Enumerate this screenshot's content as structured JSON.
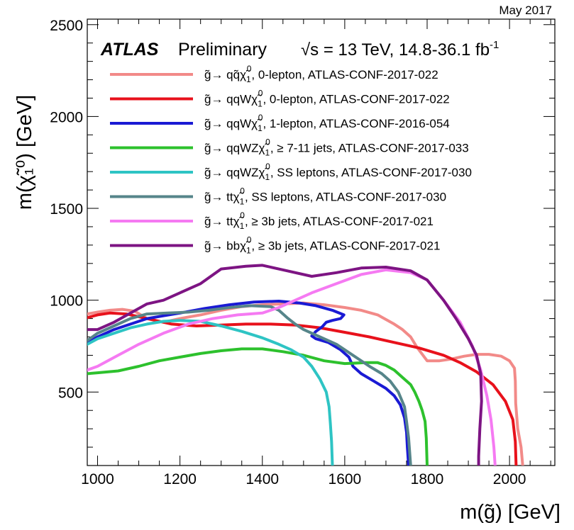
{
  "chart_data": {
    "type": "line",
    "title": "May 2017",
    "experiment": "ATLAS",
    "status": "Preliminary",
    "energy_label": "√s = 13 TeV, 14.8-36.1 fb",
    "energy_sup": "-1",
    "xlabel": "m(g̃) [GeV]",
    "ylabel": "m(χ̃₁⁰) [GeV]",
    "xlim": [
      975,
      2110
    ],
    "ylim": [
      100,
      2530
    ],
    "xticks": [
      1000,
      1200,
      1400,
      1600,
      1800,
      2000
    ],
    "yticks": [
      500,
      1000,
      1500,
      2000,
      2500
    ],
    "legend_position": "top",
    "series": [
      {
        "name": "g̃→ qqχ̃₁⁰, 0-lepton, ATLAS-CONF-2017-022",
        "legend": {
          "g": "g̃",
          "arrow": "→ qq̃χ̃",
          "rest": ", 0-lepton, ATLAS-CONF-2017-022"
        },
        "color": "#f28a88",
        "points": [
          [
            975,
            925
          ],
          [
            1000,
            935
          ],
          [
            1030,
            945
          ],
          [
            1060,
            950
          ],
          [
            1090,
            940
          ],
          [
            1120,
            900
          ],
          [
            1160,
            880
          ],
          [
            1200,
            900
          ],
          [
            1250,
            920
          ],
          [
            1300,
            945
          ],
          [
            1350,
            965
          ],
          [
            1400,
            975
          ],
          [
            1450,
            980
          ],
          [
            1500,
            985
          ],
          [
            1550,
            975
          ],
          [
            1600,
            960
          ],
          [
            1640,
            945
          ],
          [
            1680,
            920
          ],
          [
            1700,
            895
          ],
          [
            1720,
            870
          ],
          [
            1740,
            840
          ],
          [
            1760,
            800
          ],
          [
            1775,
            745
          ],
          [
            1790,
            700
          ],
          [
            1800,
            670
          ],
          [
            1830,
            670
          ],
          [
            1860,
            680
          ],
          [
            1890,
            695
          ],
          [
            1920,
            705
          ],
          [
            1950,
            705
          ],
          [
            1980,
            695
          ],
          [
            2000,
            670
          ],
          [
            2012,
            630
          ],
          [
            2014,
            560
          ],
          [
            2015,
            440
          ],
          [
            2020,
            300
          ],
          [
            2028,
            200
          ],
          [
            2032,
            100
          ]
        ]
      },
      {
        "name": "g̃→ qqWχ̃₁⁰, 0-lepton, ATLAS-CONF-2017-022",
        "color": "#e8111b",
        "points": [
          [
            975,
            905
          ],
          [
            1000,
            920
          ],
          [
            1030,
            930
          ],
          [
            1070,
            925
          ],
          [
            1100,
            910
          ],
          [
            1140,
            890
          ],
          [
            1180,
            870
          ],
          [
            1240,
            860
          ],
          [
            1300,
            865
          ],
          [
            1360,
            870
          ],
          [
            1420,
            870
          ],
          [
            1480,
            865
          ],
          [
            1540,
            850
          ],
          [
            1600,
            825
          ],
          [
            1660,
            800
          ],
          [
            1720,
            770
          ],
          [
            1780,
            740
          ],
          [
            1840,
            700
          ],
          [
            1880,
            660
          ],
          [
            1920,
            610
          ],
          [
            1960,
            540
          ],
          [
            1990,
            450
          ],
          [
            2008,
            350
          ],
          [
            2014,
            230
          ],
          [
            2016,
            100
          ]
        ]
      },
      {
        "name": "g̃→ qqWχ̃₁⁰, 1-lepton, ATLAS-CONF-2016-054",
        "color": "#1a1ad4",
        "points": [
          [
            975,
            770
          ],
          [
            1000,
            800
          ],
          [
            1040,
            840
          ],
          [
            1080,
            870
          ],
          [
            1120,
            900
          ],
          [
            1160,
            915
          ],
          [
            1200,
            930
          ],
          [
            1260,
            955
          ],
          [
            1320,
            975
          ],
          [
            1380,
            990
          ],
          [
            1440,
            995
          ],
          [
            1490,
            985
          ],
          [
            1530,
            970
          ],
          [
            1570,
            945
          ],
          [
            1598,
            920
          ],
          [
            1590,
            900
          ],
          [
            1570,
            890
          ],
          [
            1555,
            880
          ],
          [
            1545,
            855
          ],
          [
            1530,
            830
          ],
          [
            1520,
            805
          ],
          [
            1530,
            790
          ],
          [
            1560,
            770
          ],
          [
            1590,
            730
          ],
          [
            1610,
            690
          ],
          [
            1620,
            640
          ],
          [
            1640,
            600
          ],
          [
            1670,
            560
          ],
          [
            1700,
            520
          ],
          [
            1720,
            480
          ],
          [
            1735,
            430
          ],
          [
            1745,
            360
          ],
          [
            1750,
            280
          ],
          [
            1752,
            200
          ],
          [
            1755,
            100
          ]
        ]
      },
      {
        "name": "g̃→ qqWZχ̃₁⁰, ≥ 7-11 jets, ATLAS-CONF-2017-033",
        "color": "#2dc12d",
        "points": [
          [
            975,
            600
          ],
          [
            1000,
            605
          ],
          [
            1050,
            615
          ],
          [
            1100,
            640
          ],
          [
            1150,
            670
          ],
          [
            1200,
            690
          ],
          [
            1250,
            710
          ],
          [
            1300,
            725
          ],
          [
            1350,
            735
          ],
          [
            1400,
            735
          ],
          [
            1450,
            720
          ],
          [
            1500,
            700
          ],
          [
            1550,
            670
          ],
          [
            1600,
            655
          ],
          [
            1650,
            660
          ],
          [
            1680,
            660
          ],
          [
            1700,
            645
          ],
          [
            1720,
            620
          ],
          [
            1740,
            580
          ],
          [
            1760,
            540
          ],
          [
            1770,
            500
          ],
          [
            1780,
            450
          ],
          [
            1788,
            400
          ],
          [
            1795,
            340
          ],
          [
            1798,
            250
          ],
          [
            1800,
            100
          ]
        ]
      },
      {
        "name": "g̃→ qqWZχ̃₁⁰, SS leptons, ATLAS-CONF-2017-030",
        "color": "#2ec4c4",
        "points": [
          [
            975,
            760
          ],
          [
            1000,
            790
          ],
          [
            1040,
            820
          ],
          [
            1080,
            850
          ],
          [
            1120,
            870
          ],
          [
            1160,
            885
          ],
          [
            1200,
            890
          ],
          [
            1250,
            885
          ],
          [
            1300,
            860
          ],
          [
            1350,
            830
          ],
          [
            1400,
            795
          ],
          [
            1440,
            760
          ],
          [
            1470,
            730
          ],
          [
            1500,
            690
          ],
          [
            1520,
            640
          ],
          [
            1540,
            570
          ],
          [
            1555,
            500
          ],
          [
            1562,
            420
          ],
          [
            1565,
            330
          ],
          [
            1568,
            230
          ],
          [
            1570,
            100
          ]
        ]
      },
      {
        "name": "g̃→ ttχ̃₁⁰, SS leptons, ATLAS-CONF-2017-030",
        "color": "#56858a",
        "points": [
          [
            975,
            780
          ],
          [
            1000,
            820
          ],
          [
            1040,
            860
          ],
          [
            1080,
            900
          ],
          [
            1120,
            925
          ],
          [
            1170,
            930
          ],
          [
            1220,
            935
          ],
          [
            1270,
            945
          ],
          [
            1320,
            960
          ],
          [
            1370,
            970
          ],
          [
            1420,
            965
          ],
          [
            1440,
            945
          ],
          [
            1460,
            905
          ],
          [
            1480,
            870
          ],
          [
            1500,
            840
          ],
          [
            1540,
            800
          ],
          [
            1580,
            760
          ],
          [
            1620,
            700
          ],
          [
            1660,
            640
          ],
          [
            1690,
            600
          ],
          [
            1710,
            560
          ],
          [
            1730,
            500
          ],
          [
            1745,
            420
          ],
          [
            1750,
            340
          ],
          [
            1755,
            250
          ],
          [
            1760,
            100
          ]
        ]
      },
      {
        "name": "g̃→ ttχ̃₁⁰, ≥ 3b jets, ATLAS-CONF-2017-021",
        "color": "#f57af2",
        "points": [
          [
            975,
            620
          ],
          [
            1000,
            640
          ],
          [
            1050,
            700
          ],
          [
            1100,
            760
          ],
          [
            1160,
            820
          ],
          [
            1220,
            870
          ],
          [
            1280,
            900
          ],
          [
            1340,
            920
          ],
          [
            1400,
            930
          ],
          [
            1440,
            960
          ],
          [
            1480,
            1000
          ],
          [
            1520,
            1040
          ],
          [
            1580,
            1090
          ],
          [
            1640,
            1140
          ],
          [
            1700,
            1165
          ],
          [
            1760,
            1150
          ],
          [
            1800,
            1110
          ],
          [
            1840,
            1000
          ],
          [
            1880,
            880
          ],
          [
            1910,
            750
          ],
          [
            1930,
            620
          ],
          [
            1945,
            480
          ],
          [
            1955,
            350
          ],
          [
            1962,
            200
          ],
          [
            1965,
            100
          ]
        ]
      },
      {
        "name": "g̃→ bbχ̃₁⁰, ≥ 3b jets, ATLAS-CONF-2017-021",
        "color": "#7d1483",
        "points": [
          [
            975,
            840
          ],
          [
            1000,
            840
          ],
          [
            1040,
            880
          ],
          [
            1080,
            930
          ],
          [
            1120,
            980
          ],
          [
            1160,
            1000
          ],
          [
            1200,
            1040
          ],
          [
            1250,
            1090
          ],
          [
            1300,
            1170
          ],
          [
            1360,
            1185
          ],
          [
            1400,
            1190
          ],
          [
            1460,
            1160
          ],
          [
            1520,
            1130
          ],
          [
            1580,
            1150
          ],
          [
            1640,
            1175
          ],
          [
            1700,
            1180
          ],
          [
            1760,
            1160
          ],
          [
            1800,
            1110
          ],
          [
            1840,
            1000
          ],
          [
            1870,
            900
          ],
          [
            1900,
            790
          ],
          [
            1920,
            700
          ],
          [
            1930,
            600
          ],
          [
            1932,
            450
          ],
          [
            1928,
            300
          ],
          [
            1925,
            150
          ],
          [
            1925,
            100
          ]
        ]
      }
    ],
    "legend_labels": [
      {
        "pre": "g̃→ qq̃χ̃",
        "post": ", 0-lepton, ATLAS-CONF-2017-022"
      },
      {
        "pre": "g̃→ qqWχ̃",
        "post": ", 0-lepton, ATLAS-CONF-2017-022"
      },
      {
        "pre": "g̃→ qqWχ̃",
        "post": ", 1-lepton, ATLAS-CONF-2016-054"
      },
      {
        "pre": "g̃→ qqWZχ̃",
        "post": ", ≥ 7-11 jets, ATLAS-CONF-2017-033"
      },
      {
        "pre": "g̃→ qqWZχ̃",
        "post": ", SS leptons, ATLAS-CONF-2017-030"
      },
      {
        "pre": "g̃→ ttχ̃",
        "post": ", SS leptons, ATLAS-CONF-2017-030"
      },
      {
        "pre": "g̃→ ttχ̃",
        "post": ", ≥ 3b jets, ATLAS-CONF-2017-021"
      },
      {
        "pre": "g̃→ bbχ̃",
        "post": ", ≥ 3b jets, ATLAS-CONF-2017-021"
      }
    ],
    "neutralino_sub": "1",
    "neutralino_sup": "0"
  }
}
